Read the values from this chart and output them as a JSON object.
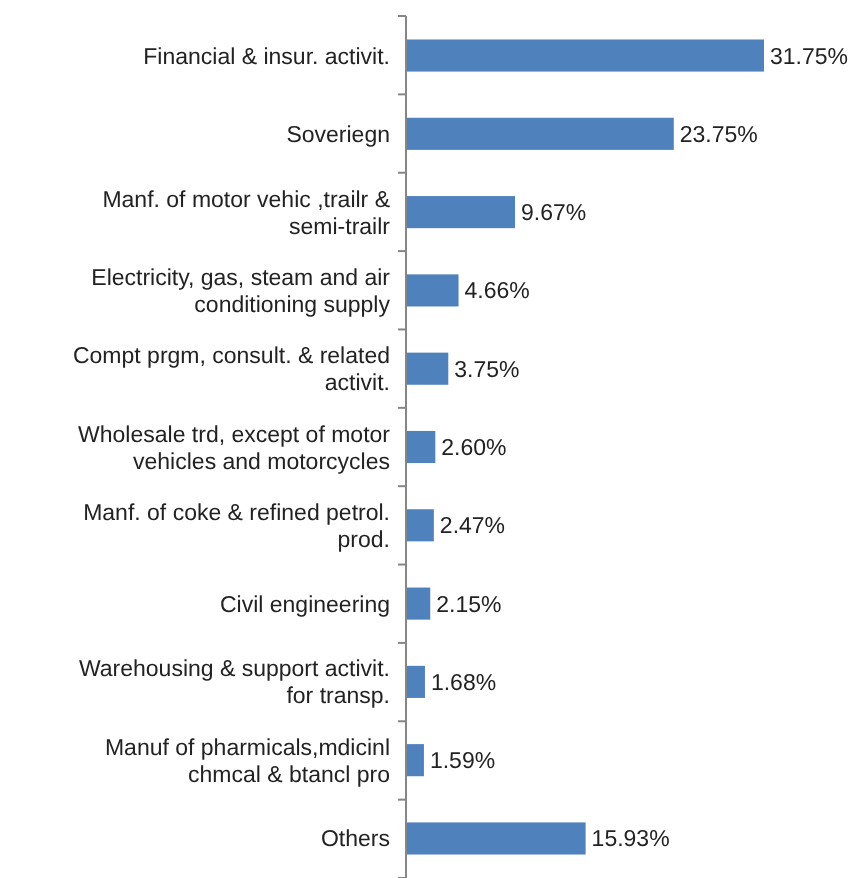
{
  "chart_data": {
    "type": "bar",
    "orientation": "horizontal",
    "color": "#4f81bd",
    "categories": [
      "Financial & insur. activit.",
      "Soveriegn",
      "Manf. of motor vehic ,trailr & semi-trailr",
      "Electricity, gas, steam and air conditioning supply",
      "Compt prgm, consult. & related activit.",
      "Wholesale trd, except of motor vehicles and motorcycles",
      "Manf. of coke & refined petrol. prod.",
      "Civil engineering",
      "Warehousing & support activit. for transp.",
      "Manuf of pharmicals,mdicinl chmcal & btancl pro",
      "Others"
    ],
    "values": [
      31.75,
      23.75,
      9.67,
      4.66,
      3.75,
      2.6,
      2.47,
      2.15,
      1.68,
      1.59,
      15.93
    ],
    "value_labels": [
      "31.75%",
      "23.75%",
      "9.67%",
      "4.66%",
      "3.75%",
      "2.60%",
      "2.47%",
      "2.15%",
      "1.68%",
      "1.59%",
      "15.93%"
    ]
  }
}
